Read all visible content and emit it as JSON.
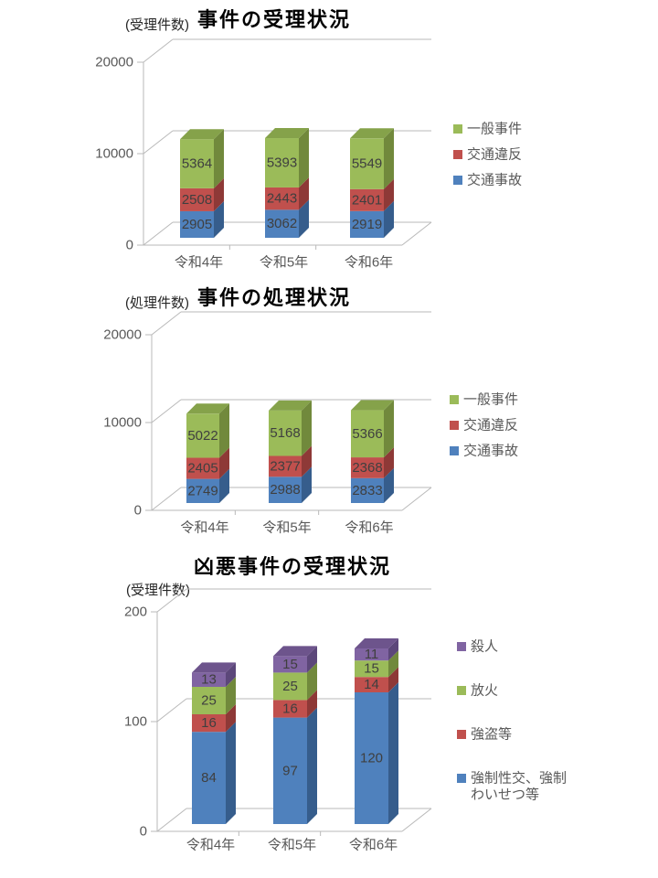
{
  "page": {
    "background": "#ffffff"
  },
  "charts": [
    {
      "name": "case-reception",
      "unit_label": "(受理件数)",
      "chart_data": {
        "type": "bar",
        "stacked": true,
        "style": "3d",
        "title": "事件の受理状況",
        "categories": [
          "令和4年",
          "令和5年",
          "令和6年"
        ],
        "series": [
          {
            "name": "交通事故",
            "color": "#4F81BD",
            "color_top": "#4472A4",
            "color_side": "#365D8C",
            "values": [
              2905,
              3062,
              2919
            ]
          },
          {
            "name": "交通違反",
            "color": "#C0504D",
            "color_top": "#A64440",
            "color_side": "#8E3937",
            "values": [
              2508,
              2443,
              2401
            ]
          },
          {
            "name": "一般事件",
            "color": "#9BBB59",
            "color_top": "#85A24A",
            "color_side": "#71893C",
            "values": [
              5364,
              5393,
              5549
            ]
          }
        ],
        "ylim": [
          0,
          20000
        ],
        "yticks": [
          "0",
          "10000",
          "20000"
        ],
        "ytick_values": [
          0,
          10000,
          20000
        ],
        "legend_position": "right",
        "grid": true
      }
    },
    {
      "name": "case-processing",
      "unit_label": "(処理件数)",
      "chart_data": {
        "type": "bar",
        "stacked": true,
        "style": "3d",
        "title": "事件の処理状況",
        "categories": [
          "令和4年",
          "令和5年",
          "令和6年"
        ],
        "series": [
          {
            "name": "交通事故",
            "color": "#4F81BD",
            "color_top": "#4472A4",
            "color_side": "#365D8C",
            "values": [
              2749,
              2988,
              2833
            ]
          },
          {
            "name": "交通違反",
            "color": "#C0504D",
            "color_top": "#A64440",
            "color_side": "#8E3937",
            "values": [
              2405,
              2377,
              2368
            ]
          },
          {
            "name": "一般事件",
            "color": "#9BBB59",
            "color_top": "#85A24A",
            "color_side": "#71893C",
            "values": [
              5022,
              5168,
              5366
            ]
          }
        ],
        "ylim": [
          0,
          20000
        ],
        "yticks": [
          "0",
          "10000",
          "20000"
        ],
        "ytick_values": [
          0,
          10000,
          20000
        ],
        "legend_position": "right",
        "grid": true
      }
    },
    {
      "name": "violent-case-reception",
      "unit_label": "(受理件数)",
      "chart_data": {
        "type": "bar",
        "stacked": true,
        "style": "3d",
        "title": "凶悪事件の受理状況",
        "categories": [
          "令和4年",
          "令和5年",
          "令和6年"
        ],
        "series": [
          {
            "name": "強制性交、強制わいせつ等",
            "legend_lines": [
              "強制性交、強制",
              "わいせつ等"
            ],
            "color": "#4F81BD",
            "color_top": "#4472A4",
            "color_side": "#365D8C",
            "values": [
              84,
              97,
              120
            ]
          },
          {
            "name": "強盗等",
            "color": "#C0504D",
            "color_top": "#A64440",
            "color_side": "#8E3937",
            "values": [
              16,
              16,
              14
            ]
          },
          {
            "name": "放火",
            "color": "#9BBB59",
            "color_top": "#85A24A",
            "color_side": "#71893C",
            "values": [
              25,
              25,
              15
            ]
          },
          {
            "name": "殺人",
            "color": "#8064A2",
            "color_top": "#6D548C",
            "color_side": "#5C477A",
            "values": [
              13,
              15,
              11
            ]
          }
        ],
        "ylim": [
          0,
          200
        ],
        "yticks": [
          "0",
          "100",
          "200"
        ],
        "ytick_values": [
          0,
          100,
          200
        ],
        "legend_position": "right",
        "grid": true
      }
    }
  ]
}
